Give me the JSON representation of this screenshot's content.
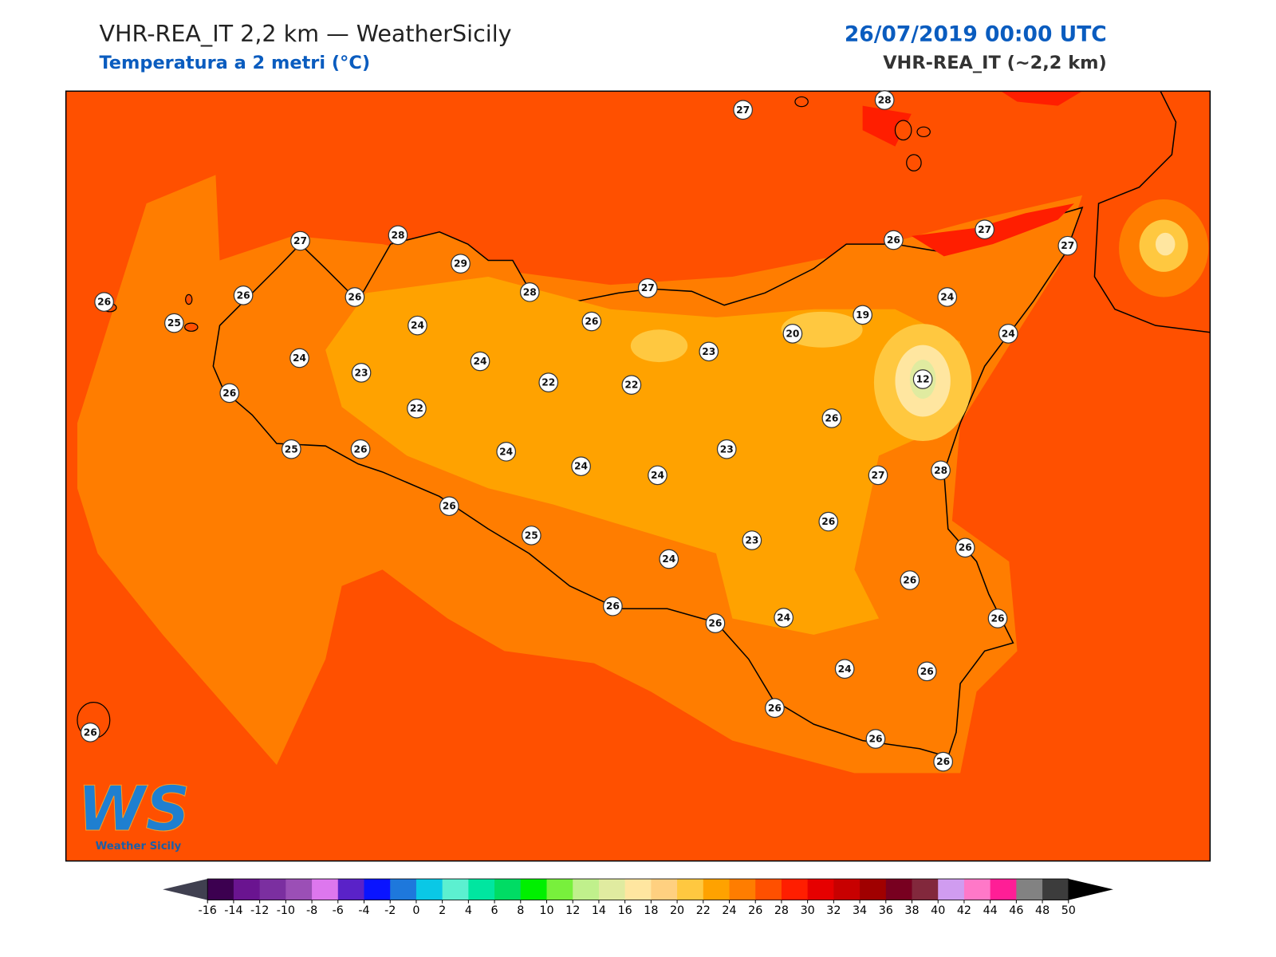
{
  "header": {
    "title": "VHR-REA_IT 2,2 km — WeatherSicily",
    "subtitle": "Temperatura a 2 metri (°C)",
    "datetime": "26/07/2019 00:00 UTC",
    "model": "VHR-REA_IT (~2,2 km)"
  },
  "stations": [
    27,
    28,
    27,
    28,
    29,
    26,
    25,
    26,
    26,
    28,
    27,
    26,
    27,
    27,
    24,
    26,
    24,
    19,
    20,
    24,
    24,
    24,
    23,
    23,
    22,
    22,
    12,
    26,
    22,
    26,
    25,
    26,
    24,
    23,
    24,
    24,
    27,
    28,
    26,
    26,
    25,
    23,
    26,
    24,
    26,
    26,
    26,
    24,
    26,
    24,
    26,
    26,
    26,
    26,
    26
  ],
  "logo": {
    "text": "WS",
    "tagline": "Weather Sicily"
  },
  "colorbar": {
    "ticks": [
      -16,
      -14,
      -12,
      -10,
      -8,
      -6,
      -4,
      -2,
      0,
      2,
      4,
      6,
      8,
      10,
      12,
      14,
      16,
      18,
      20,
      22,
      24,
      26,
      28,
      30,
      32,
      34,
      36,
      38,
      40,
      42,
      44,
      46,
      48,
      50
    ],
    "colors": [
      "#3c0050",
      "#6a1490",
      "#7b2fa0",
      "#9b4fb6",
      "#dd77ee",
      "#5a22c8",
      "#0a14ff",
      "#1e78dc",
      "#0ac8e6",
      "#5cf0d0",
      "#00e6a0",
      "#00dc64",
      "#00f000",
      "#78f03c",
      "#c0f08c",
      "#e0eba0",
      "#ffe6a0",
      "#ffd080",
      "#ffc840",
      "#ffa200",
      "#ff7d00",
      "#ff5000",
      "#ff1e00",
      "#e60000",
      "#c80000",
      "#a00000",
      "#780020",
      "#82283c",
      "#d09cf0",
      "#ff78c8",
      "#ff1e96",
      "#828282",
      "#3c3c3c"
    ],
    "under_color": "#404050",
    "over_color": "#000000"
  }
}
